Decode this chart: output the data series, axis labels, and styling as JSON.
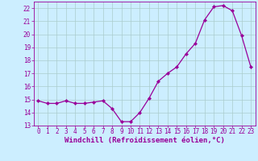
{
  "x": [
    0,
    1,
    2,
    3,
    4,
    5,
    6,
    7,
    8,
    9,
    10,
    11,
    12,
    13,
    14,
    15,
    16,
    17,
    18,
    19,
    20,
    21,
    22,
    23
  ],
  "y": [
    14.9,
    14.7,
    14.7,
    14.9,
    14.7,
    14.7,
    14.8,
    14.9,
    14.3,
    13.3,
    13.3,
    14.0,
    15.1,
    16.4,
    17.0,
    17.5,
    18.5,
    19.3,
    21.1,
    22.1,
    22.2,
    21.8,
    19.9,
    17.5
  ],
  "line_color": "#990099",
  "marker": "D",
  "marker_size": 2.2,
  "bg_color": "#cceeff",
  "grid_color": "#aacccc",
  "xlabel": "Windchill (Refroidissement éolien,°C)",
  "ylabel": "",
  "xlim": [
    -0.5,
    23.5
  ],
  "ylim": [
    13.0,
    22.5
  ],
  "yticks": [
    13,
    14,
    15,
    16,
    17,
    18,
    19,
    20,
    21,
    22
  ],
  "xticks": [
    0,
    1,
    2,
    3,
    4,
    5,
    6,
    7,
    8,
    9,
    10,
    11,
    12,
    13,
    14,
    15,
    16,
    17,
    18,
    19,
    20,
    21,
    22,
    23
  ],
  "tick_color": "#990099",
  "label_color": "#990099",
  "axis_fontsize": 5.5,
  "xlabel_fontsize": 6.5,
  "linewidth": 0.9
}
